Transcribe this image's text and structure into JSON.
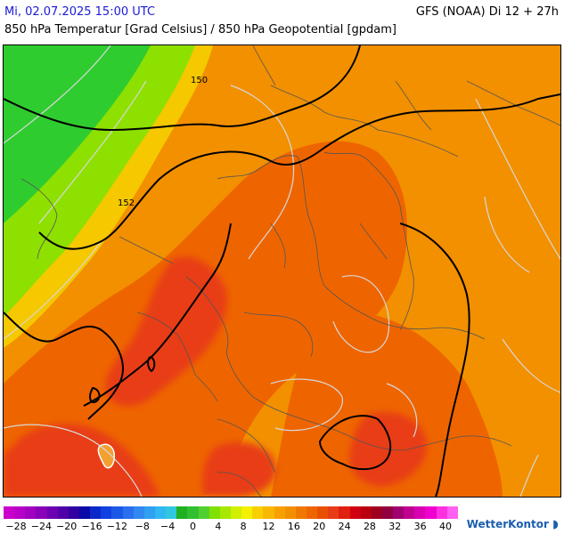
{
  "header": {
    "timestamp": "Mi, 02.07.2025 15:00 UTC",
    "model_run": "GFS (NOAA) Di 12 + 27h",
    "parameter": "850 hPa Temperatur [Grad Celsius] / 850 hPa Geopotential [gpdam]"
  },
  "map": {
    "isohypse_labels": [
      "150",
      "152"
    ],
    "colors": {
      "cold_front_green": "#2fcc2f",
      "yellow_green": "#8ee000",
      "yellow": "#f5c800",
      "orange": "#f29000",
      "deep_orange": "#ee6500",
      "red": "#e83c18",
      "hot_red": "#e01e14",
      "border": "#555555",
      "isohypse": "#000000",
      "isotherm": "#d0d0d0"
    }
  },
  "legend": {
    "tick_labels": [
      "−28",
      "−24",
      "−20",
      "−16",
      "−12",
      "−8",
      "−4",
      "0",
      "4",
      "8",
      "12",
      "16",
      "20",
      "24",
      "28",
      "32",
      "36",
      "40"
    ],
    "colors": [
      "#cc00cc",
      "#b800c8",
      "#a000c0",
      "#8800b8",
      "#6c00b0",
      "#5000a8",
      "#3000a0",
      "#0a0aa8",
      "#0c28c8",
      "#1040e0",
      "#1c58e8",
      "#2870f0",
      "#3088f0",
      "#30a0f0",
      "#30b8f0",
      "#30c8e0",
      "#20b020",
      "#30c030",
      "#50d030",
      "#80e000",
      "#a8e800",
      "#d0f000",
      "#f5f000",
      "#f8d000",
      "#f8b800",
      "#f8a000",
      "#f29000",
      "#f07800",
      "#ee6500",
      "#e85000",
      "#e83c18",
      "#e02010",
      "#d00010",
      "#b80010",
      "#a00020",
      "#900040",
      "#a00070",
      "#c00090",
      "#d800b0",
      "#f000d0",
      "#ff30e0",
      "#ff60f0"
    ]
  },
  "brand": {
    "name": "WetterKontor",
    "logo": "wetterkontor-logo-icon"
  }
}
